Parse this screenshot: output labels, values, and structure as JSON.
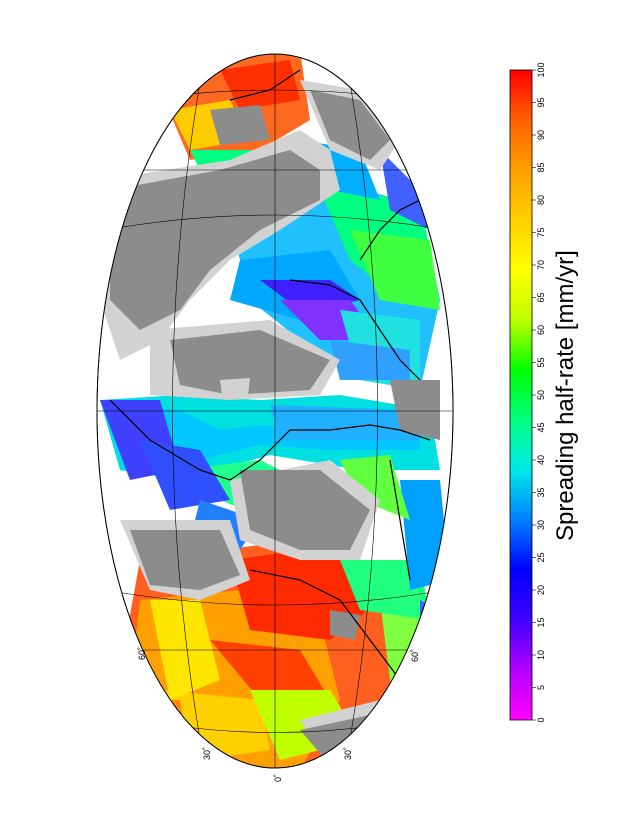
{
  "map": {
    "projection": "Hammer-Aitoff (rotated 90°)",
    "graticule_labels": {
      "lon_left_60": "60˚",
      "lon_left_30": "30˚",
      "lon_0": "0˚",
      "lon_right_30": "30˚",
      "lon_right_60": "60˚"
    },
    "colors": {
      "land": "#8c8c8c",
      "shelf": "#d2d2d2",
      "no_data": "#ffffff",
      "ridge": "#000000"
    }
  },
  "colorbar": {
    "title": "Spreading half-rate [mm/yr]",
    "min": 0,
    "max": 100,
    "step": 5,
    "tick_labels": [
      "0",
      "5",
      "10",
      "15",
      "20",
      "25",
      "30",
      "35",
      "40",
      "45",
      "50",
      "55",
      "60",
      "65",
      "70",
      "75",
      "80",
      "85",
      "90",
      "95",
      "100"
    ],
    "stops": [
      "#ff00ff",
      "#b400ff",
      "#4000ff",
      "#0000ff",
      "#0080ff",
      "#00e8e8",
      "#00ff80",
      "#00ff00",
      "#c0ff00",
      "#ffff00",
      "#ffd000",
      "#ffa000",
      "#ff6000",
      "#ff0000"
    ]
  }
}
